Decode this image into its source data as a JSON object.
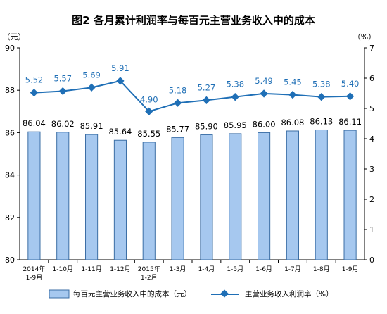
{
  "chart_data": {
    "type": "bar+line",
    "title": "图2  各月累计利润率与每百元主营业务收入中的成本",
    "left_axis": {
      "unit": "（元）",
      "min": 80,
      "max": 90,
      "ticks": [
        "80",
        "82",
        "84",
        "86",
        "88",
        "90"
      ]
    },
    "right_axis": {
      "unit": "（%）",
      "min": 0,
      "max": 7,
      "ticks": [
        "0",
        "1",
        "2",
        "3",
        "4",
        "5",
        "6",
        "7"
      ]
    },
    "categories": [
      [
        "2014年",
        "1-9月"
      ],
      [
        "1-10月"
      ],
      [
        "1-11月"
      ],
      [
        "1-12月"
      ],
      [
        "2015年",
        "1-2月"
      ],
      [
        "1-3月"
      ],
      [
        "1-4月"
      ],
      [
        "1-5月"
      ],
      [
        "1-6月"
      ],
      [
        "1-7月"
      ],
      [
        "1-8月"
      ],
      [
        "1-9月"
      ]
    ],
    "series": [
      {
        "name": "每百元主营业务收入中的成本（元）",
        "type": "bar",
        "axis": "left",
        "values": [
          86.04,
          86.02,
          85.91,
          85.64,
          85.55,
          85.77,
          85.9,
          85.95,
          86.0,
          86.08,
          86.13,
          86.11
        ],
        "labels": [
          "86.04",
          "86.02",
          "85.91",
          "85.64",
          "85.55",
          "85.77",
          "85.90",
          "85.95",
          "86.00",
          "86.08",
          "86.13",
          "86.11"
        ]
      },
      {
        "name": "主营业务收入利润率（%）",
        "type": "line",
        "axis": "right",
        "values": [
          5.52,
          5.57,
          5.69,
          5.91,
          4.9,
          5.18,
          5.27,
          5.38,
          5.49,
          5.45,
          5.38,
          5.4
        ],
        "labels": [
          "5.52",
          "5.57",
          "5.69",
          "5.91",
          "4.90",
          "5.18",
          "5.27",
          "5.38",
          "5.49",
          "5.45",
          "5.38",
          "5.40"
        ]
      }
    ],
    "legend": {
      "placement": "bottom"
    },
    "grid": false,
    "colors": {
      "bar_fill": "#a6c8ef",
      "bar_stroke": "#3b6ea5",
      "line": "#1f6fb6",
      "line_label": "#1f6fb6",
      "axis": "#000000"
    }
  }
}
